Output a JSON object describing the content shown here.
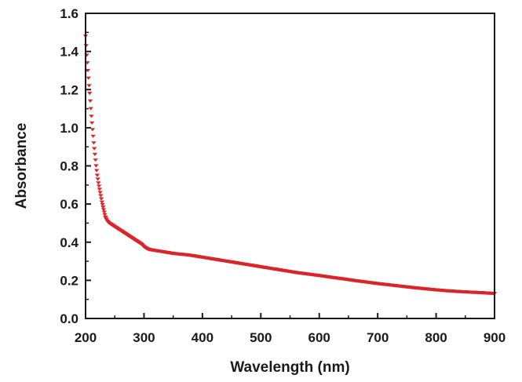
{
  "chart_data": {
    "type": "scatter",
    "title": "",
    "xlabel": "Wavelength (nm)",
    "ylabel": "Absorbance",
    "xlim": [
      200,
      900
    ],
    "ylim": [
      0.0,
      1.6
    ],
    "x_ticks": [
      "200",
      "300",
      "400",
      "500",
      "600",
      "700",
      "800",
      "900"
    ],
    "y_ticks": [
      "0.0",
      "0.2",
      "0.4",
      "0.6",
      "0.8",
      "1.0",
      "1.2",
      "1.4",
      "1.6"
    ],
    "grid": false,
    "legend": "none",
    "marker": "down-triangle",
    "series_color": "#d9262b",
    "series": [
      {
        "x": [
          200,
          202,
          204,
          206,
          208,
          210,
          212,
          214,
          216,
          218,
          220,
          222,
          225,
          228,
          231,
          234,
          237,
          240,
          245,
          250,
          255,
          260,
          265,
          270,
          275,
          280,
          285,
          290,
          295,
          300,
          305,
          310,
          320,
          330,
          340,
          350,
          360,
          370,
          380,
          390,
          400,
          420,
          440,
          460,
          480,
          500,
          520,
          540,
          560,
          580,
          600,
          620,
          640,
          660,
          680,
          700,
          720,
          740,
          760,
          780,
          800,
          820,
          840,
          860,
          880,
          900
        ],
        "y": [
          1.48,
          1.38,
          1.3,
          1.22,
          1.14,
          1.06,
          0.99,
          0.92,
          0.86,
          0.8,
          0.75,
          0.71,
          0.66,
          0.61,
          0.57,
          0.53,
          0.51,
          0.5,
          0.49,
          0.48,
          0.47,
          0.46,
          0.45,
          0.44,
          0.43,
          0.42,
          0.41,
          0.4,
          0.39,
          0.375,
          0.365,
          0.36,
          0.355,
          0.35,
          0.345,
          0.34,
          0.337,
          0.334,
          0.33,
          0.325,
          0.32,
          0.31,
          0.3,
          0.29,
          0.28,
          0.27,
          0.26,
          0.25,
          0.24,
          0.232,
          0.224,
          0.215,
          0.207,
          0.198,
          0.19,
          0.182,
          0.175,
          0.168,
          0.161,
          0.155,
          0.149,
          0.144,
          0.14,
          0.137,
          0.134,
          0.13
        ]
      }
    ]
  }
}
